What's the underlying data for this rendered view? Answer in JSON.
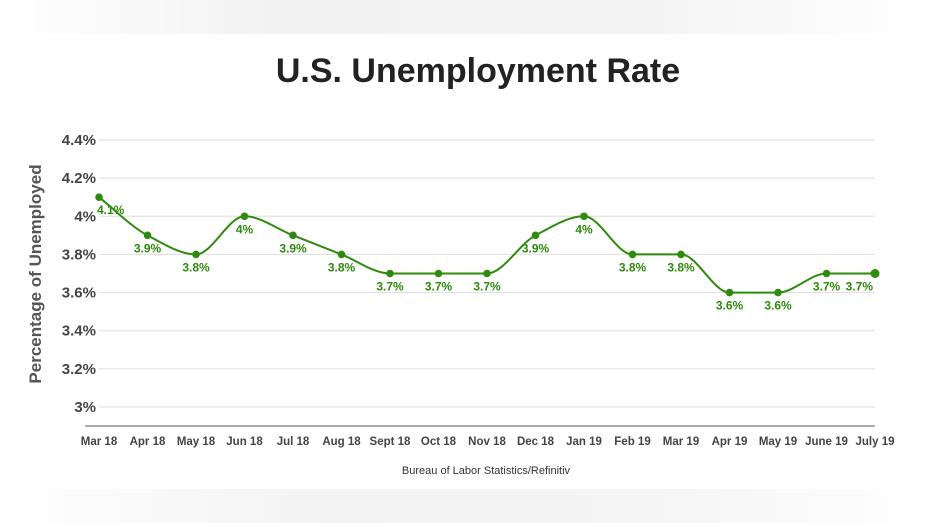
{
  "chart_data": {
    "type": "line",
    "title": "U.S. Unemployment Rate",
    "ylabel": "Percentage of Unemployed",
    "source": "Bureau of Labor Statistics/Refinitiv",
    "categories": [
      "Mar 18",
      "Apr 18",
      "May 18",
      "Jun 18",
      "Jul 18",
      "Aug 18",
      "Sept 18",
      "Oct 18",
      "Nov 18",
      "Dec 18",
      "Jan 19",
      "Feb 19",
      "Mar 19",
      "Apr 19",
      "May 19",
      "June 19",
      "July 19"
    ],
    "values": [
      4.1,
      3.9,
      3.8,
      4.0,
      3.9,
      3.8,
      3.7,
      3.7,
      3.7,
      3.9,
      4.0,
      3.8,
      3.8,
      3.6,
      3.6,
      3.7,
      3.7
    ],
    "data_labels": [
      "4.1%",
      "3.9%",
      "3.8%",
      "4%",
      "3.9%",
      "3.8%",
      "3.7%",
      "3.7%",
      "3.7%",
      "3.9%",
      "4%",
      "3.8%",
      "3.8%",
      "3.6%",
      "3.6%",
      "3.7%",
      "3.7%"
    ],
    "yticks": [
      3.0,
      3.2,
      3.4,
      3.6,
      3.8,
      4.0,
      4.2,
      4.4
    ],
    "ytick_labels": [
      "3%",
      "3.2%",
      "3.4%",
      "3.6%",
      "3.8%",
      "4%",
      "4.2%",
      "4.4%"
    ],
    "ylim": [
      2.9,
      4.4
    ],
    "grid": true,
    "line_color": "#2e8b0e"
  }
}
